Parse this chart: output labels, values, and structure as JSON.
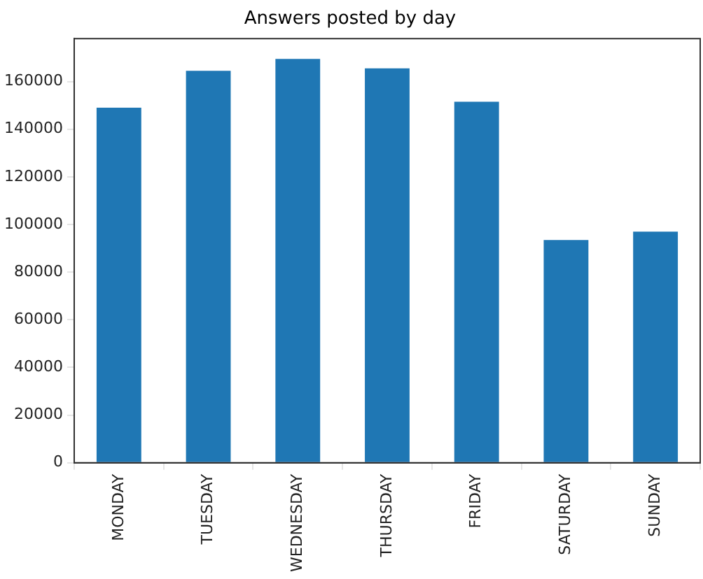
{
  "chart_data": {
    "type": "bar",
    "title": "Answers posted by day",
    "categories": [
      "MONDAY",
      "TUESDAY",
      "WEDNESDAY",
      "THURSDAY",
      "FRIDAY",
      "SATURDAY",
      "SUNDAY"
    ],
    "values": [
      149000,
      164500,
      169500,
      165500,
      151500,
      93500,
      97000
    ],
    "color": "#1f77b4",
    "ylim": [
      0,
      178000
    ],
    "yticks": [
      0,
      20000,
      40000,
      60000,
      80000,
      100000,
      120000,
      140000,
      160000
    ],
    "grid": false,
    "legend": false
  }
}
